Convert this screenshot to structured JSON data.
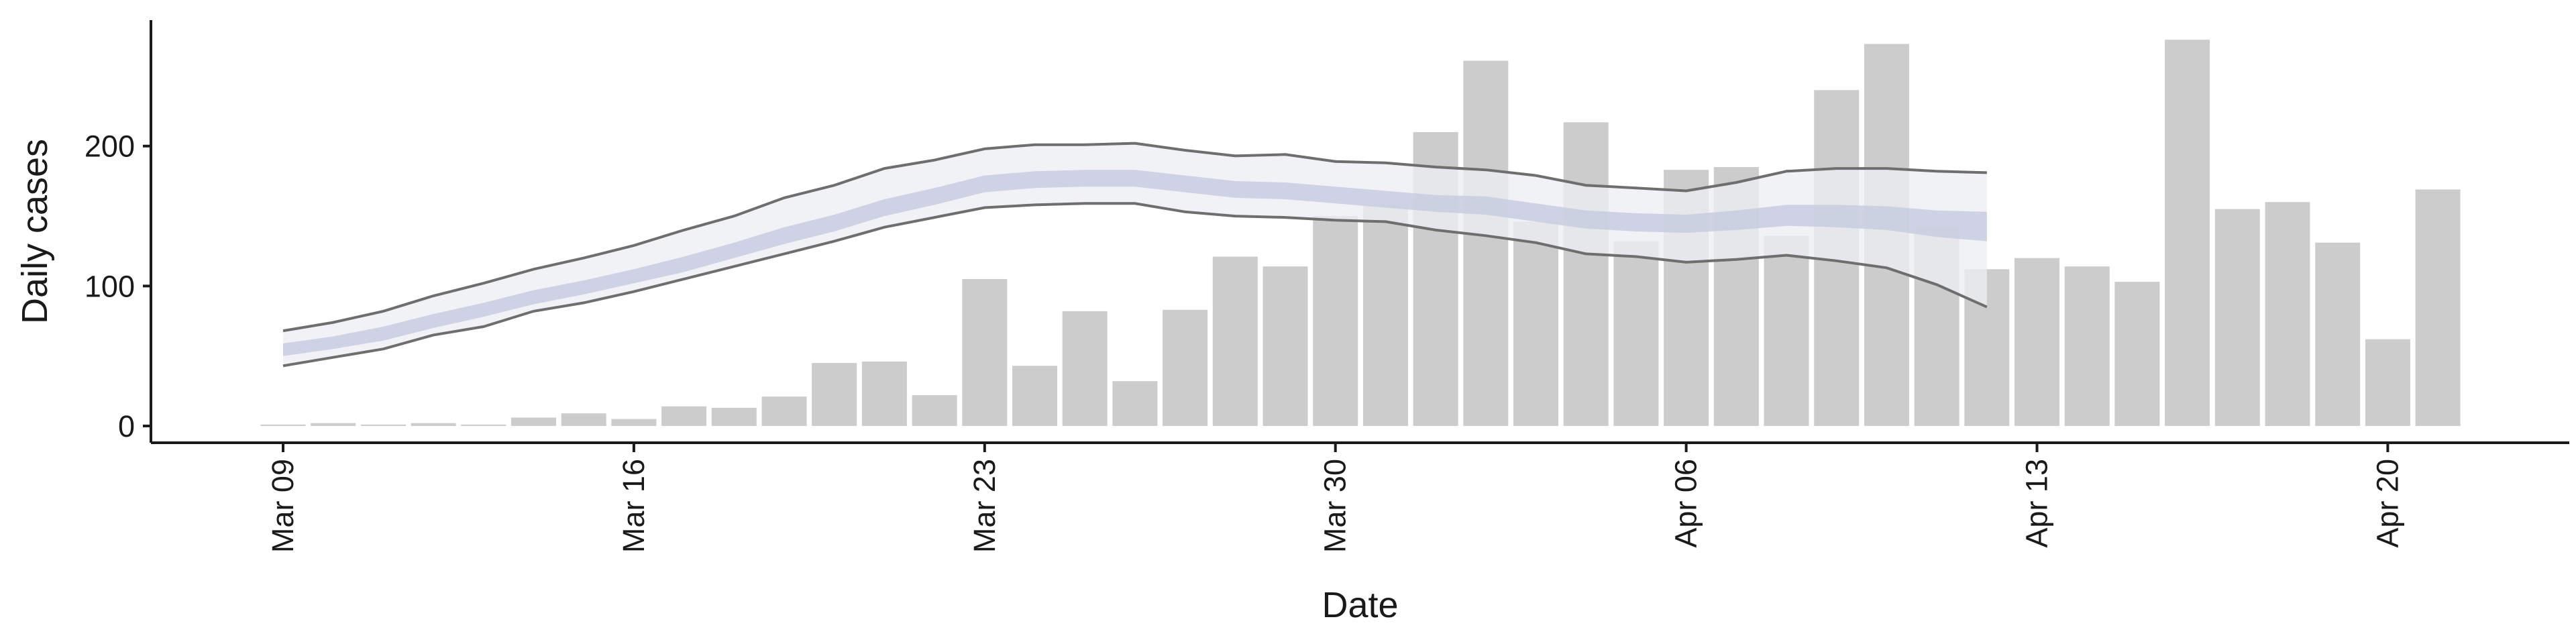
{
  "chart_data": {
    "type": "bar",
    "title": "",
    "xlabel": "Date",
    "ylabel": "Daily cases",
    "x_tick_labels": [
      "Mar 09",
      "Mar 16",
      "Mar 23",
      "Mar 30",
      "Apr 06",
      "Apr 13",
      "Apr 20"
    ],
    "y_ticks": [
      0,
      100,
      200
    ],
    "ylim": [
      -12,
      290
    ],
    "dates": [
      "Mar 09",
      "Mar 10",
      "Mar 11",
      "Mar 12",
      "Mar 13",
      "Mar 14",
      "Mar 15",
      "Mar 16",
      "Mar 17",
      "Mar 18",
      "Mar 19",
      "Mar 20",
      "Mar 21",
      "Mar 22",
      "Mar 23",
      "Mar 24",
      "Mar 25",
      "Mar 26",
      "Mar 27",
      "Mar 28",
      "Mar 29",
      "Mar 30",
      "Mar 31",
      "Apr 01",
      "Apr 02",
      "Apr 03",
      "Apr 04",
      "Apr 05",
      "Apr 06",
      "Apr 07",
      "Apr 08",
      "Apr 09",
      "Apr 10",
      "Apr 11",
      "Apr 12",
      "Apr 13",
      "Apr 14",
      "Apr 15",
      "Apr 16",
      "Apr 17",
      "Apr 18",
      "Apr 19",
      "Apr 20",
      "Apr 21"
    ],
    "observed_cases": [
      1,
      2,
      1,
      2,
      1,
      6,
      9,
      5,
      14,
      13,
      21,
      45,
      46,
      22,
      105,
      43,
      82,
      32,
      83,
      121,
      114,
      150,
      158,
      210,
      261,
      146,
      217,
      132,
      183,
      185,
      136,
      240,
      273,
      142,
      112,
      120,
      114,
      103,
      276,
      155,
      160,
      131,
      62,
      169
    ],
    "estimate_dates": [
      "Mar 09",
      "Mar 10",
      "Mar 11",
      "Mar 12",
      "Mar 13",
      "Mar 14",
      "Mar 15",
      "Mar 16",
      "Mar 17",
      "Mar 18",
      "Mar 19",
      "Mar 20",
      "Mar 21",
      "Mar 22",
      "Mar 23",
      "Mar 24",
      "Mar 25",
      "Mar 26",
      "Mar 27",
      "Mar 28",
      "Mar 29",
      "Mar 30",
      "Mar 31",
      "Apr 01",
      "Apr 02",
      "Apr 03",
      "Apr 04",
      "Apr 05",
      "Apr 06",
      "Apr 07",
      "Apr 08",
      "Apr 09",
      "Apr 10",
      "Apr 11",
      "Apr 12"
    ],
    "estimate_upper_90": [
      68,
      74,
      82,
      93,
      102,
      112,
      120,
      129,
      140,
      150,
      163,
      172,
      184,
      190,
      198,
      201,
      201,
      202,
      197,
      193,
      194,
      189,
      188,
      185,
      183,
      179,
      172,
      170,
      168,
      174,
      182,
      184,
      184,
      182,
      181
    ],
    "estimate_lower_90": [
      43,
      49,
      55,
      65,
      71,
      82,
      88,
      96,
      105,
      114,
      123,
      132,
      142,
      149,
      156,
      158,
      159,
      159,
      153,
      150,
      149,
      147,
      146,
      140,
      136,
      131,
      123,
      121,
      117,
      119,
      122,
      118,
      113,
      101,
      85
    ],
    "estimate_upper_50": [
      59,
      64,
      71,
      80,
      88,
      97,
      104,
      112,
      121,
      131,
      142,
      151,
      162,
      170,
      179,
      182,
      183,
      183,
      179,
      175,
      174,
      171,
      168,
      165,
      164,
      159,
      154,
      152,
      151,
      154,
      158,
      158,
      157,
      154,
      153
    ],
    "estimate_lower_50": [
      50,
      55,
      61,
      70,
      78,
      87,
      94,
      102,
      110,
      120,
      130,
      139,
      150,
      158,
      167,
      170,
      171,
      171,
      167,
      163,
      162,
      159,
      156,
      153,
      151,
      146,
      141,
      139,
      138,
      140,
      143,
      142,
      140,
      135,
      132
    ],
    "grid": false,
    "legend": "none",
    "colors": {
      "bars": "#cccccc",
      "band_outer": "#eceef4",
      "band_inner": "#c8cde0",
      "band_edge": "#6e6e6e",
      "axis": "#1a1a1a"
    }
  }
}
